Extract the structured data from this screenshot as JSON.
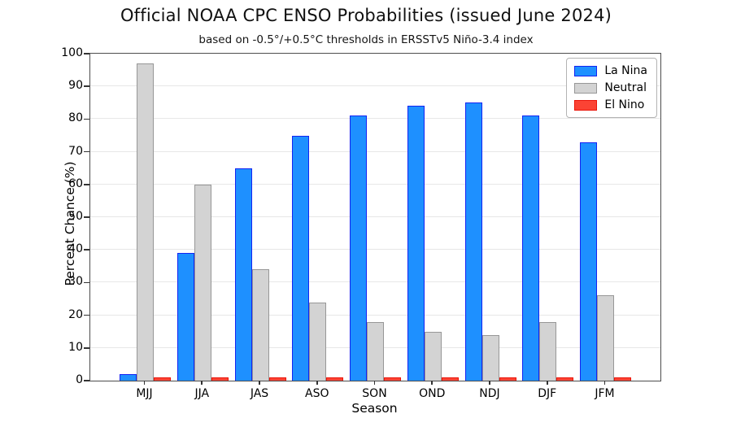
{
  "title": "Official NOAA CPC ENSO Probabilities (issued June 2024)",
  "subtitle": "based on -0.5°/+0.5°C thresholds in ERSSTv5 Niño-3.4 index",
  "axes": {
    "xlabel": "Season",
    "ylabel": "Percent Chance (%)"
  },
  "chart_data": {
    "type": "bar",
    "title": "Official NOAA CPC ENSO Probabilities (issued June 2024)",
    "subtitle": "based on -0.5°/+0.5°C thresholds in ERSSTv5 Niño-3.4 index",
    "xlabel": "Season",
    "ylabel": "Percent Chance (%)",
    "ylim": [
      0,
      100
    ],
    "yticks": [
      0,
      10,
      20,
      30,
      40,
      50,
      60,
      70,
      80,
      90,
      100
    ],
    "grid": "horizontal",
    "legend_position": "upper right",
    "categories": [
      "MJJ",
      "JJA",
      "JAS",
      "ASO",
      "SON",
      "OND",
      "NDJ",
      "DJF",
      "JFM"
    ],
    "series": [
      {
        "name": "La Nina",
        "fill_color": "#1E90FF",
        "edge_color": "#1423f2",
        "values": [
          2,
          39,
          65,
          75,
          81,
          84,
          85,
          81,
          73
        ]
      },
      {
        "name": "Neutral",
        "fill_color": "#d3d3d3",
        "edge_color": "#979797",
        "values": [
          97,
          60,
          34,
          24,
          18,
          15,
          14,
          18,
          26
        ]
      },
      {
        "name": "El Nino",
        "fill_color": "#fb4334",
        "edge_color": "#ea1509",
        "values": [
          1,
          1,
          1,
          1,
          1,
          1,
          1,
          1,
          1
        ]
      }
    ]
  }
}
